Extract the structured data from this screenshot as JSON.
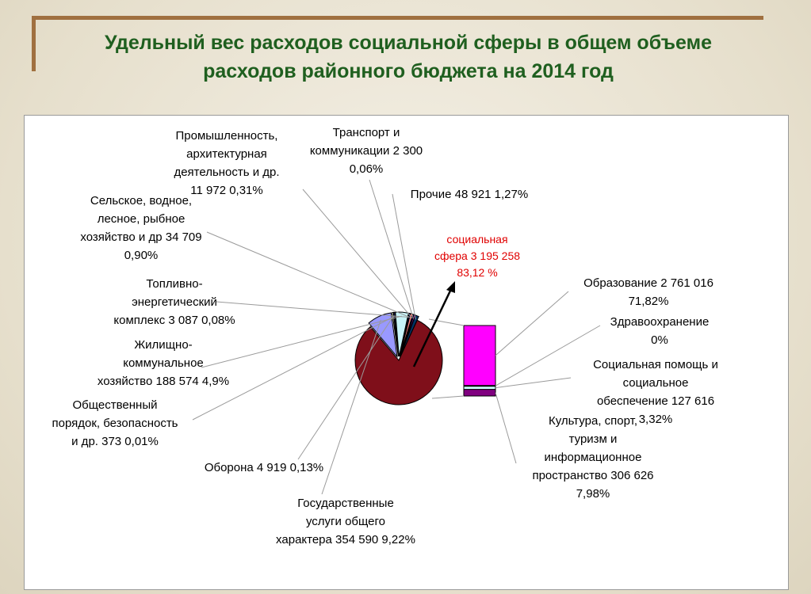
{
  "page": {
    "title_line1": "Удельный вес расходов социальной сферы в общем объеме",
    "title_line2": "расходов районного бюджета на 2014 год"
  },
  "colors": {
    "social": "#7f0f1a",
    "housing": "#c8f4f8",
    "defense": "#ffffcc",
    "order": "#333399",
    "public_services": "#9999ff",
    "fuel": "#000080",
    "agriculture": "#ff8080",
    "industry": "#000080",
    "transport": "#ff00ff",
    "other": "#003366",
    "education": "#ff00ff",
    "health": "#ffff00",
    "social_aid": "#ccffff",
    "culture": "#800080"
  },
  "chart_data": [
    {
      "type": "pie",
      "title": "Удельный вес расходов социальной сферы в общем объеме расходов районного бюджета на 2014 год",
      "slices": [
        {
          "key": "social",
          "label": [
            "социальная",
            "сфера  3 195 258",
            "83,12 %"
          ],
          "value": 3195258,
          "percent": 83.12
        },
        {
          "key": "public_services",
          "label": [
            "Государственные",
            "услуги общего",
            "характера 354 590   9,22%"
          ],
          "value": 354590,
          "percent": 9.22
        },
        {
          "key": "defense",
          "label": [
            "Оборона 4 919   0,13%"
          ],
          "value": 4919,
          "percent": 0.13
        },
        {
          "key": "order",
          "label": [
            "Общественный",
            "порядок, безопасность",
            "и др. 373   0,01%"
          ],
          "value": 373,
          "percent": 0.01
        },
        {
          "key": "housing",
          "label": [
            "Жилищно-",
            "коммунальное",
            "хозяйство 188 574   4,9%"
          ],
          "value": 188574,
          "percent": 4.9
        },
        {
          "key": "fuel",
          "label": [
            "Топливно-",
            "энергетический",
            "комплекс 3 087  0,08%"
          ],
          "value": 3087,
          "percent": 0.08
        },
        {
          "key": "agriculture",
          "label": [
            "Сельское, водное,",
            "лесное, рыбное",
            "хозяйство и др 34 709",
            "0,90%"
          ],
          "value": 34709,
          "percent": 0.9
        },
        {
          "key": "industry",
          "label": [
            "Промышленность,",
            "архитектурная",
            "деятельность и др.",
            "11 972   0,31%"
          ],
          "value": 11972,
          "percent": 0.31
        },
        {
          "key": "transport",
          "label": [
            "Транспорт и",
            "коммуникации 2 300",
            "0,06%"
          ],
          "value": 2300,
          "percent": 0.06
        },
        {
          "key": "other",
          "label": [
            "Прочие 48 921  1,27%"
          ],
          "value": 48921,
          "percent": 1.27
        }
      ]
    },
    {
      "type": "bar",
      "stacked": true,
      "parent": "social",
      "slices": [
        {
          "key": "culture",
          "label": [
            "Культура, спорт,",
            "туризм и",
            "информационное",
            "пространство 306 626",
            "7,98%"
          ],
          "value": 306626,
          "percent": 7.98
        },
        {
          "key": "social_aid",
          "label": [
            "Социальная помощь и",
            "социальное",
            "обеспечение 127 616",
            "3,32%"
          ],
          "value": 127616,
          "percent": 3.32
        },
        {
          "key": "health",
          "label": [
            "Здравоохранение",
            "0%"
          ],
          "value": 0,
          "percent": 0
        },
        {
          "key": "education",
          "label": [
            "Образование 2 761 016",
            "71,82%"
          ],
          "value": 2761016,
          "percent": 71.82
        }
      ]
    }
  ]
}
